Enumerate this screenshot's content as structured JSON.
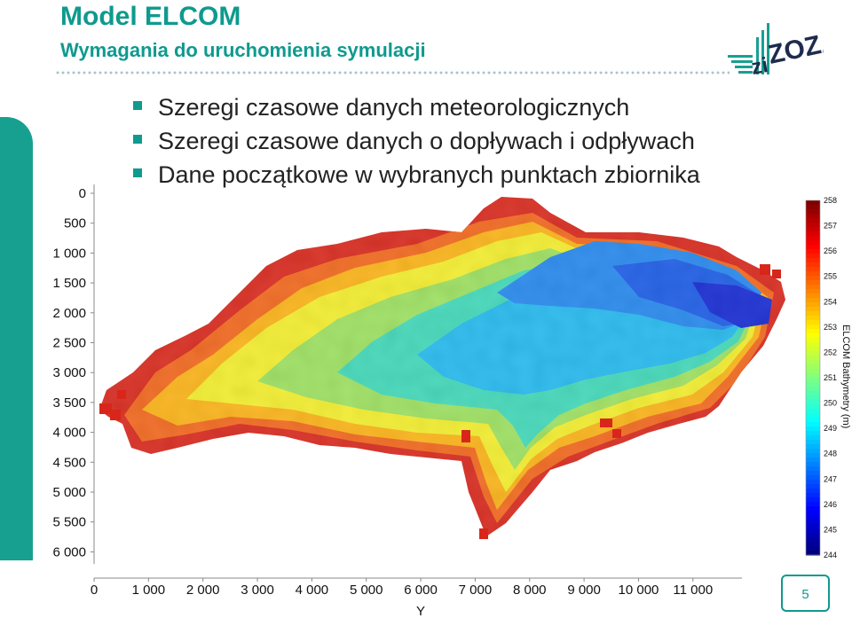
{
  "slide": {
    "title": "Model ELCOM",
    "subtitle": "Wymagania do uruchomienia symulacji",
    "bullets": [
      "Szeregi czasowe danych meteorologicznych",
      "Szeregi czasowe danych o dopływach i odpływach",
      "Dane początkowe w wybranych punktach zbiornika"
    ],
    "page_number": "5",
    "logo_text": "ziZOZAP",
    "accent_color": "#0f9a8e"
  },
  "chart_data": {
    "type": "heatmap",
    "title": "",
    "xlabel": "Y",
    "ylabel": "",
    "colorbar_label": "ELCOM Bathymetry (m)",
    "x_ticks": [
      "0",
      "1 000",
      "2 000",
      "3 000",
      "4 000",
      "5 000",
      "6 000",
      "7 000",
      "8 000",
      "9 000",
      "10 000",
      "11 000"
    ],
    "y_ticks": [
      "0",
      "500",
      "1 000",
      "1 500",
      "2 000",
      "2 500",
      "3 000",
      "3 500",
      "4 000",
      "4 500",
      "5 000",
      "5 500",
      "6 000"
    ],
    "colorbar_ticks": [
      "258",
      "257",
      "256",
      "255",
      "254",
      "253",
      "252",
      "251",
      "250",
      "249",
      "248",
      "247",
      "246",
      "245",
      "244"
    ],
    "xlim": [
      0,
      12000
    ],
    "ylim": [
      0,
      6200
    ],
    "clim": [
      244,
      258
    ],
    "colormap": "jet",
    "grid": false
  }
}
